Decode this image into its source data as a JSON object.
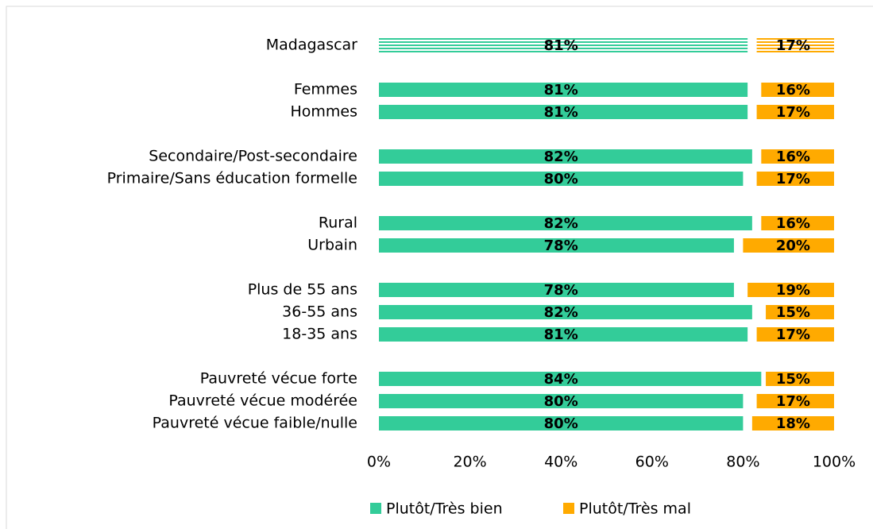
{
  "chart_data": {
    "type": "bar",
    "orientation": "horizontal",
    "categories": [
      "Madagascar",
      null,
      "Femmes",
      "Hommes",
      null,
      "Secondaire/Post-secondaire",
      "Primaire/Sans éducation formelle",
      null,
      "Rural",
      "Urbain",
      null,
      "Plus de 55 ans",
      "36-55 ans",
      "18-35 ans",
      null,
      "Pauvreté vécue forte",
      "Pauvreté vécue modérée",
      "Pauvreté vécue faible/nulle"
    ],
    "series": [
      {
        "name": "Plutôt/Très bien",
        "color": "#33cc99",
        "values": [
          81,
          null,
          81,
          81,
          null,
          82,
          80,
          null,
          82,
          78,
          null,
          78,
          82,
          81,
          null,
          84,
          80,
          80
        ],
        "value_labels": [
          "81%",
          null,
          "81%",
          "81%",
          null,
          "82%",
          "80%",
          null,
          "82%",
          "78%",
          null,
          "78%",
          "82%",
          "81%",
          null,
          "84%",
          "80%",
          "80%"
        ]
      },
      {
        "name": "Plutôt/Très mal",
        "color": "#ffaa00",
        "align": "right",
        "values": [
          17,
          null,
          16,
          17,
          null,
          16,
          17,
          null,
          16,
          20,
          null,
          19,
          15,
          17,
          null,
          15,
          17,
          18
        ],
        "value_labels": [
          "17%",
          null,
          "16%",
          "17%",
          null,
          "16%",
          "17%",
          null,
          "16%",
          "20%",
          null,
          "19%",
          "15%",
          "17%",
          null,
          "15%",
          "17%",
          "18%"
        ]
      }
    ],
    "xlim": [
      0,
      100
    ],
    "xticks": [
      {
        "value": 0,
        "label": "0%"
      },
      {
        "value": 20,
        "label": "20%"
      },
      {
        "value": 40,
        "label": "40%"
      },
      {
        "value": 60,
        "label": "60%"
      },
      {
        "value": 80,
        "label": "80%"
      },
      {
        "value": 100,
        "label": "100%"
      }
    ],
    "legend": "bottom"
  }
}
